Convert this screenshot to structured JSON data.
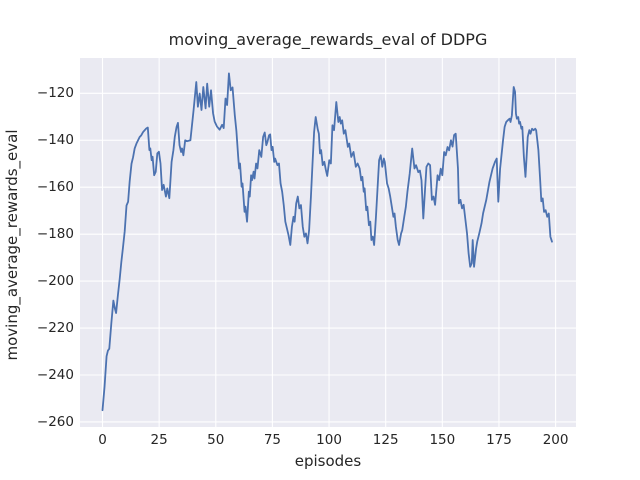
{
  "colors": {
    "line": "#4c72b0",
    "axes_background": "#eaeaf2",
    "grid": "#ffffff",
    "text": "#262626",
    "figure_background": "#ffffff"
  },
  "chart_data": {
    "type": "line",
    "title": "moving_average_rewards_eval of DDPG",
    "xlabel": "episodes",
    "ylabel": "moving_average_rewards_eval",
    "legend": null,
    "grid": true,
    "xlim": [
      -9.93,
      209.0
    ],
    "ylim": [
      -262.15,
      -104.96
    ],
    "xticks": [
      0,
      25,
      50,
      75,
      100,
      125,
      150,
      175,
      200
    ],
    "xtick_labels": [
      "0",
      "25",
      "50",
      "75",
      "100",
      "125",
      "150",
      "175",
      "200"
    ],
    "yticks": [
      -120,
      -140,
      -160,
      -180,
      -200,
      -220,
      -240,
      -260
    ],
    "ytick_labels": [
      "−120",
      "−140",
      "−160",
      "−180",
      "−200",
      "−220",
      "−240",
      "−260"
    ],
    "series_name": "moving_average_rewards_eval",
    "points": [
      [
        0,
        -255
      ],
      [
        0.9,
        -245
      ],
      [
        1.8,
        -232
      ],
      [
        2.4,
        -229.6
      ],
      [
        3,
        -228.8
      ],
      [
        3.9,
        -218
      ],
      [
        4.8,
        -208.3
      ],
      [
        5.5,
        -211.8
      ],
      [
        6,
        -213.6
      ],
      [
        6.8,
        -206
      ],
      [
        7.6,
        -199
      ],
      [
        8.3,
        -192
      ],
      [
        9,
        -186
      ],
      [
        9.8,
        -178.8
      ],
      [
        10.6,
        -167.8
      ],
      [
        11.3,
        -166.2
      ],
      [
        12,
        -157.5
      ],
      [
        12.8,
        -150
      ],
      [
        13.5,
        -147.2
      ],
      [
        14.2,
        -143.5
      ],
      [
        15,
        -141.4
      ],
      [
        15.7,
        -140
      ],
      [
        16.4,
        -138.6
      ],
      [
        17.1,
        -137.9
      ],
      [
        17.9,
        -136.5
      ],
      [
        19.3,
        -135
      ],
      [
        20,
        -134.6
      ],
      [
        20.7,
        -144.2
      ],
      [
        21.1,
        -143.5
      ],
      [
        21.7,
        -148.5
      ],
      [
        22.1,
        -147
      ],
      [
        22.8,
        -154.9
      ],
      [
        23.5,
        -153.4
      ],
      [
        24.2,
        -145.6
      ],
      [
        24.9,
        -144.9
      ],
      [
        25.6,
        -149.9
      ],
      [
        26.3,
        -161.2
      ],
      [
        27,
        -159
      ],
      [
        28,
        -164
      ],
      [
        28.6,
        -160.5
      ],
      [
        29.5,
        -164.7
      ],
      [
        30.5,
        -149.2
      ],
      [
        31.3,
        -144.2
      ],
      [
        31.9,
        -138.6
      ],
      [
        32.7,
        -134.3
      ],
      [
        33.3,
        -132.6
      ],
      [
        34,
        -142.1
      ],
      [
        34.7,
        -145
      ],
      [
        35.1,
        -143.5
      ],
      [
        35.7,
        -146.4
      ],
      [
        36.5,
        -140
      ],
      [
        37.4,
        -140.4
      ],
      [
        38.8,
        -140
      ],
      [
        39.5,
        -133.6
      ],
      [
        40.2,
        -127.2
      ],
      [
        41.4,
        -115.2
      ],
      [
        42.1,
        -125.7
      ],
      [
        42.9,
        -120.1
      ],
      [
        43.7,
        -127.1
      ],
      [
        44.5,
        -117.3
      ],
      [
        45.5,
        -126.4
      ],
      [
        46.2,
        -115.9
      ],
      [
        47.1,
        -125.7
      ],
      [
        47.9,
        -118.7
      ],
      [
        48.8,
        -128.5
      ],
      [
        49.5,
        -132
      ],
      [
        50.5,
        -134.1
      ],
      [
        51.7,
        -135.5
      ],
      [
        52.8,
        -133.4
      ],
      [
        53.5,
        -134.8
      ],
      [
        54.3,
        -122.2
      ],
      [
        55,
        -125
      ],
      [
        55.8,
        -111.5
      ],
      [
        56.6,
        -118.7
      ],
      [
        57.4,
        -117.5
      ],
      [
        58.4,
        -129.4
      ],
      [
        59.1,
        -136
      ],
      [
        59.9,
        -147.1
      ],
      [
        60.3,
        -152
      ],
      [
        60.7,
        -149.9
      ],
      [
        61.4,
        -159.8
      ],
      [
        61.8,
        -158.4
      ],
      [
        62.7,
        -170.5
      ],
      [
        63.1,
        -168.3
      ],
      [
        63.8,
        -174.7
      ],
      [
        64.6,
        -161.9
      ],
      [
        65,
        -164
      ],
      [
        65.6,
        -154.9
      ],
      [
        66,
        -157
      ],
      [
        66.7,
        -153.4
      ],
      [
        67.1,
        -156.3
      ],
      [
        67.8,
        -149.9
      ],
      [
        68.4,
        -152
      ],
      [
        69.2,
        -144.2
      ],
      [
        70.1,
        -147.1
      ],
      [
        70.9,
        -138.6
      ],
      [
        71.6,
        -136.7
      ],
      [
        72.3,
        -142.1
      ],
      [
        72.8,
        -140.7
      ],
      [
        73.5,
        -137.9
      ],
      [
        74,
        -137.5
      ],
      [
        74.6,
        -144.2
      ],
      [
        75.1,
        -142.8
      ],
      [
        75.8,
        -149.2
      ],
      [
        76.2,
        -147.8
      ],
      [
        77.2,
        -150.6
      ],
      [
        77.9,
        -149.9
      ],
      [
        78.6,
        -158.4
      ],
      [
        79.3,
        -161.9
      ],
      [
        80,
        -167.6
      ],
      [
        80.7,
        -174.7
      ],
      [
        81.4,
        -177.5
      ],
      [
        82.1,
        -180.4
      ],
      [
        82.9,
        -184.6
      ],
      [
        83.6,
        -176.9
      ],
      [
        84.3,
        -172.6
      ],
      [
        84.8,
        -174.7
      ],
      [
        85.5,
        -166.9
      ],
      [
        86.2,
        -164
      ],
      [
        86.9,
        -169
      ],
      [
        87.6,
        -167.6
      ],
      [
        88.4,
        -176.9
      ],
      [
        89.1,
        -181.1
      ],
      [
        89.8,
        -179.7
      ],
      [
        90.5,
        -183.9
      ],
      [
        91.2,
        -178.3
      ],
      [
        92,
        -164
      ],
      [
        92.7,
        -150
      ],
      [
        93.4,
        -136.5
      ],
      [
        94.1,
        -130.1
      ],
      [
        95,
        -135.3
      ],
      [
        95.5,
        -137.2
      ],
      [
        96,
        -145.6
      ],
      [
        96.5,
        -144.2
      ],
      [
        97.2,
        -150.6
      ],
      [
        97.9,
        -149.2
      ],
      [
        98.6,
        -152.7
      ],
      [
        99.2,
        -155.2
      ],
      [
        100.1,
        -148.5
      ],
      [
        100.8,
        -149.9
      ],
      [
        101.5,
        -133.6
      ],
      [
        102.2,
        -135.7
      ],
      [
        103.2,
        -123.7
      ],
      [
        104.1,
        -132.2
      ],
      [
        104.7,
        -130.1
      ],
      [
        105.2,
        -132.9
      ],
      [
        105.8,
        -131.5
      ],
      [
        106.5,
        -137.2
      ],
      [
        107.2,
        -135.7
      ],
      [
        108.3,
        -142.8
      ],
      [
        108.9,
        -141.4
      ],
      [
        109.8,
        -147.1
      ],
      [
        110.8,
        -145
      ],
      [
        111.8,
        -151.3
      ],
      [
        112.6,
        -149.9
      ],
      [
        113.5,
        -152
      ],
      [
        114.2,
        -157.1
      ],
      [
        114.7,
        -155.6
      ],
      [
        115.3,
        -161.9
      ],
      [
        115.7,
        -160.5
      ],
      [
        116.4,
        -169.8
      ],
      [
        116.9,
        -168.3
      ],
      [
        117.6,
        -176.2
      ],
      [
        118.2,
        -174.7
      ],
      [
        118.7,
        -182.5
      ],
      [
        119.3,
        -181.1
      ],
      [
        119.9,
        -184.6
      ],
      [
        120.7,
        -172.6
      ],
      [
        121.4,
        -160.5
      ],
      [
        122.1,
        -148.5
      ],
      [
        122.8,
        -146.4
      ],
      [
        123.5,
        -151.3
      ],
      [
        124.2,
        -147.8
      ],
      [
        124.6,
        -149.2
      ],
      [
        125.6,
        -158.4
      ],
      [
        126.3,
        -160.5
      ],
      [
        127,
        -164
      ],
      [
        127.7,
        -168.3
      ],
      [
        128.4,
        -172.6
      ],
      [
        128.9,
        -171.2
      ],
      [
        129.5,
        -176.9
      ],
      [
        130.3,
        -182.5
      ],
      [
        130.9,
        -184.6
      ],
      [
        131.8,
        -179.7
      ],
      [
        132.3,
        -178.3
      ],
      [
        133.2,
        -172.6
      ],
      [
        133.9,
        -168.3
      ],
      [
        134.6,
        -161.9
      ],
      [
        135.6,
        -154.2
      ],
      [
        136.7,
        -143.5
      ],
      [
        137.7,
        -152
      ],
      [
        138.4,
        -150.6
      ],
      [
        139.4,
        -153.6
      ],
      [
        140.1,
        -152.9
      ],
      [
        140.8,
        -157.1
      ],
      [
        141.6,
        -173.3
      ],
      [
        142.4,
        -160.5
      ],
      [
        143,
        -151.3
      ],
      [
        143.8,
        -149.9
      ],
      [
        144.6,
        -150.6
      ],
      [
        145.4,
        -165.4
      ],
      [
        146.1,
        -164
      ],
      [
        146.8,
        -167.5
      ],
      [
        147.9,
        -154.9
      ],
      [
        148.6,
        -157
      ],
      [
        149.3,
        -152.1
      ],
      [
        150,
        -154.9
      ],
      [
        150.8,
        -145
      ],
      [
        151.5,
        -146.4
      ],
      [
        152.3,
        -142.9
      ],
      [
        153,
        -144.3
      ],
      [
        153.8,
        -140
      ],
      [
        154.5,
        -142.7
      ],
      [
        155.2,
        -137.8
      ],
      [
        155.9,
        -137.2
      ],
      [
        156.9,
        -152
      ],
      [
        157.3,
        -166.9
      ],
      [
        158,
        -165.4
      ],
      [
        158.7,
        -169
      ],
      [
        159.4,
        -167.5
      ],
      [
        160.9,
        -179.7
      ],
      [
        161.6,
        -188.2
      ],
      [
        162.3,
        -193.9
      ],
      [
        163,
        -192.4
      ],
      [
        163.4,
        -182.5
      ],
      [
        164,
        -193.9
      ],
      [
        164.9,
        -186.1
      ],
      [
        165.4,
        -183.2
      ],
      [
        166.3,
        -179.7
      ],
      [
        167.3,
        -175.4
      ],
      [
        168,
        -171.1
      ],
      [
        169.4,
        -165.4
      ],
      [
        170.8,
        -157.7
      ],
      [
        172.2,
        -152
      ],
      [
        173.3,
        -149.1
      ],
      [
        174,
        -147.8
      ],
      [
        174.7,
        -166.2
      ],
      [
        175.5,
        -152.1
      ],
      [
        176.8,
        -140
      ],
      [
        177.5,
        -134.3
      ],
      [
        178.2,
        -132.2
      ],
      [
        178.9,
        -131.5
      ],
      [
        179.7,
        -130.8
      ],
      [
        180.1,
        -132.2
      ],
      [
        180.7,
        -129.4
      ],
      [
        181.5,
        -117.3
      ],
      [
        182.1,
        -119.4
      ],
      [
        182.5,
        -128.7
      ],
      [
        182.9,
        -130.8
      ],
      [
        183.5,
        -130.1
      ],
      [
        183.9,
        -132.9
      ],
      [
        184.3,
        -132.2
      ],
      [
        184.9,
        -135.1
      ],
      [
        185.3,
        -134.3
      ],
      [
        186,
        -147.1
      ],
      [
        186.7,
        -155.6
      ],
      [
        187.7,
        -138.6
      ],
      [
        188.4,
        -135.7
      ],
      [
        188.9,
        -137.2
      ],
      [
        189.6,
        -135.1
      ],
      [
        190.3,
        -135.7
      ],
      [
        191,
        -135.1
      ],
      [
        191.4,
        -135.7
      ],
      [
        192,
        -140.7
      ],
      [
        192.4,
        -144.2
      ],
      [
        193.1,
        -155.6
      ],
      [
        193.7,
        -166
      ],
      [
        194.3,
        -164.8
      ],
      [
        194.9,
        -170.5
      ],
      [
        195.6,
        -169.8
      ],
      [
        196.3,
        -172.6
      ],
      [
        197,
        -171.2
      ],
      [
        197.7,
        -181.1
      ],
      [
        198.4,
        -183.2
      ]
    ]
  }
}
